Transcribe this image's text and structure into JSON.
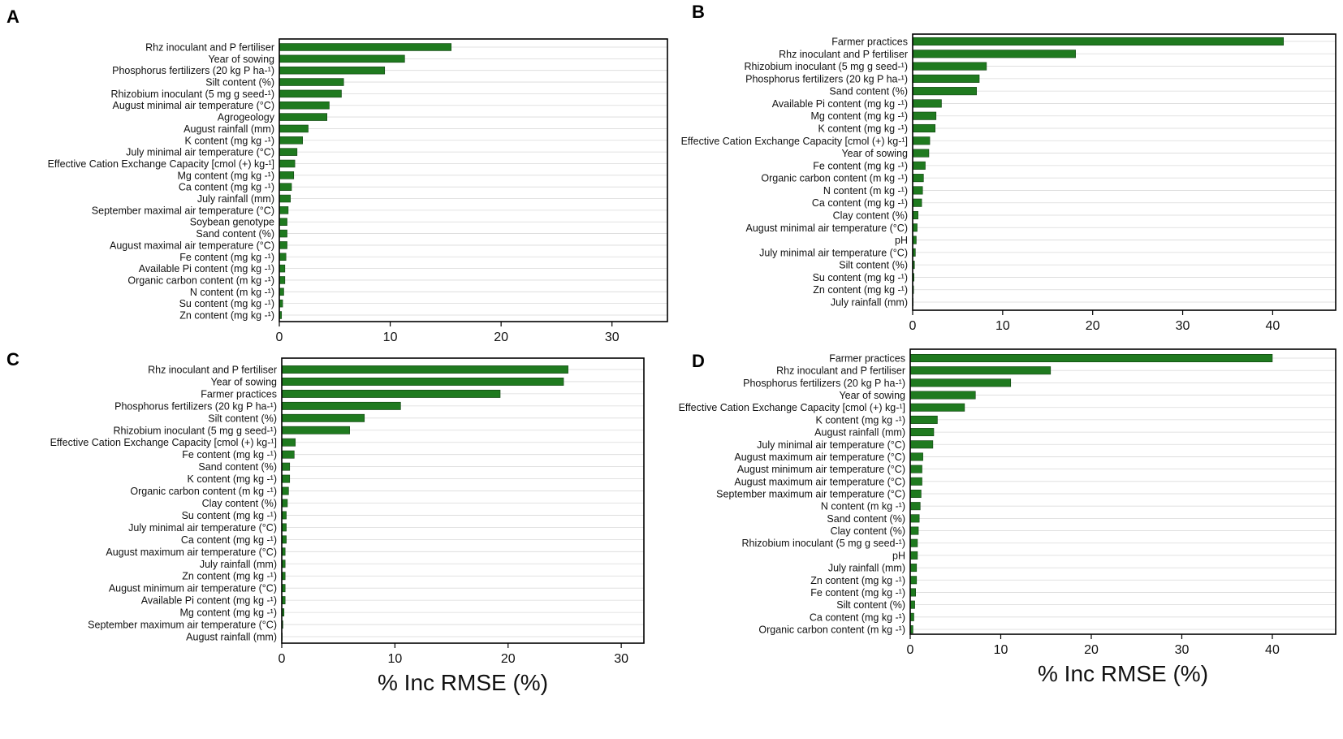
{
  "figure": {
    "xlabel": "% Inc RMSE (%)"
  },
  "chart_data": [
    {
      "panel": "A",
      "type": "bar",
      "orientation": "horizontal",
      "xlim": [
        0,
        35
      ],
      "xticks": [
        0,
        10,
        20,
        30
      ],
      "categories": [
        "Rhz inoculant  and P fertiliser",
        "Year of sowing",
        "Phosphorus fertilizers (20 kg P ha-¹)",
        "Silt content (%)",
        "Rhizobium inoculant (5 mg g seed-¹)",
        "August minimal air temperature (°C)",
        "Agrogeology",
        "August rainfall (mm)",
        "K content (mg kg -¹)",
        "July minimal air temperature (°C)",
        "Effective Cation Exchange Capacity [cmol (+) kg-¹]",
        "Mg content (mg kg -¹)",
        "Ca content (mg kg -¹)",
        "July rainfall (mm)",
        "September maximal air temperature (°C)",
        "Soybean genotype",
        "Sand content (%)",
        "August maximal air temperature (°C)",
        "Fe content (mg kg -¹)",
        "Available Pi content (mg kg -¹)",
        "Organic carbon content  (m kg -¹)",
        "N content (m kg -¹)",
        "Su content (mg kg -¹)",
        "Zn content (mg kg -¹)"
      ],
      "values": [
        15.5,
        11.3,
        9.5,
        5.8,
        5.6,
        4.5,
        4.3,
        2.6,
        2.1,
        1.6,
        1.4,
        1.3,
        1.1,
        1.0,
        0.8,
        0.7,
        0.7,
        0.7,
        0.6,
        0.5,
        0.5,
        0.4,
        0.3,
        0.2
      ],
      "xlabel": ""
    },
    {
      "panel": "B",
      "type": "bar",
      "orientation": "horizontal",
      "xlim": [
        0,
        47
      ],
      "xticks": [
        0,
        10,
        20,
        30,
        40
      ],
      "categories": [
        "Farmer practices",
        "Rhz inoculant  and P fertiliser",
        "Rhizobium inoculant (5 mg g seed-¹)",
        "Phosphorus fertilizers (20 kg P ha-¹)",
        "Sand content (%)",
        "Available Pi content (mg kg -¹)",
        "Mg content (mg kg -¹)",
        "K content (mg kg -¹)",
        "Effective Cation Exchange Capacity [cmol (+) kg-¹]",
        "Year of sowing",
        "Fe content (mg kg -¹)",
        "Organic carbon content  (m kg -¹)",
        "N content  (m kg -¹)",
        "Ca content (mg kg -¹)",
        "Clay content (%)",
        "August minimal air temperature (°C)",
        "pH",
        "July minimal air temperature (°C)",
        "Silt content (%)",
        "Su content (mg kg -¹)",
        "Zn content (mg kg -¹)",
        "July rainfall (mm)"
      ],
      "values": [
        41.2,
        18.1,
        8.2,
        7.4,
        7.1,
        3.2,
        2.6,
        2.5,
        1.9,
        1.8,
        1.4,
        1.2,
        1.1,
        1.0,
        0.6,
        0.5,
        0.4,
        0.3,
        0.2,
        0.15,
        0.1,
        0.05
      ],
      "xlabel": ""
    },
    {
      "panel": "C",
      "type": "bar",
      "orientation": "horizontal",
      "xlim": [
        0,
        32
      ],
      "xticks": [
        0,
        10,
        20,
        30
      ],
      "categories": [
        "Rhz inoculant  and P fertiliser",
        "Year of sowing",
        "Farmer practices",
        "Phosphorus fertilizers (20 kg P ha-¹)",
        "Silt content (%)",
        "Rhizobium inoculant (5 mg g seed-¹)",
        "Effective Cation Exchange Capacity [cmol (+) kg-¹]",
        "Fe content (mg kg -¹)",
        "Sand content (%)",
        "K content (mg kg -¹)",
        "Organic carbon content  (m kg -¹)",
        "Clay content (%)",
        "Su content (mg kg -¹)",
        "July minimal air temperature (°C)",
        "Ca content (mg kg -¹)",
        "August maximum  air temperature (°C)",
        "July rainfall (mm)",
        "Zn content (mg kg -¹)",
        "August minimum  air temperature (°C)",
        "Available Pi content (mg kg -¹)",
        "Mg content (mg kg -¹)",
        "September maximum  air temperature (°C)",
        "August rainfall (mm)"
      ],
      "values": [
        25.3,
        24.9,
        19.3,
        10.5,
        7.3,
        6.0,
        1.2,
        1.1,
        0.7,
        0.7,
        0.6,
        0.5,
        0.4,
        0.4,
        0.4,
        0.3,
        0.3,
        0.3,
        0.3,
        0.3,
        0.2,
        0.1,
        0.05
      ],
      "xlabel": "% Inc RMSE (%)"
    },
    {
      "panel": "D",
      "type": "bar",
      "orientation": "horizontal",
      "xlim": [
        0,
        47
      ],
      "xticks": [
        0,
        10,
        20,
        30,
        40
      ],
      "categories": [
        "Farmer practices",
        "Rhz inoculant  and P fertiliser",
        "Phosphorus fertilizers (20 kg P ha-¹)",
        "Year of sowing",
        "Effective Cation Exchange Capacity [cmol (+) kg-¹]",
        "K content (mg kg -¹)",
        "August rainfall (mm)",
        "July minimal air temperature (°C)",
        "August maximum  air temperature (°C)",
        "August minimum  air temperature (°C)",
        "August maximum air temperature (°C)",
        "September maximum  air temperature (°C)",
        "N content  (m kg -¹)",
        "Sand content (%)",
        "Clay content (%)",
        "Rhizobium inoculant (5 mg g seed-¹)",
        "pH",
        "July rainfall (mm)",
        "Zn content (mg kg -¹)",
        "Fe content (mg kg -¹)",
        "Silt content (%)",
        "Ca content (mg kg -¹)",
        "Organic carbon content  (m kg -¹)"
      ],
      "values": [
        40.0,
        15.5,
        11.1,
        7.2,
        6.0,
        3.0,
        2.6,
        2.5,
        1.4,
        1.3,
        1.3,
        1.2,
        1.1,
        1.0,
        0.9,
        0.8,
        0.8,
        0.7,
        0.7,
        0.6,
        0.5,
        0.4,
        0.3
      ],
      "xlabel": "% Inc RMSE (%)"
    }
  ]
}
